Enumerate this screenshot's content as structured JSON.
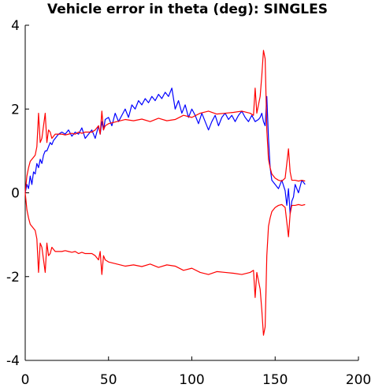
{
  "chart_data": {
    "type": "line",
    "title": "Vehicle error in theta (deg): SINGLES",
    "xlabel": "",
    "ylabel": "",
    "xlim": [
      0,
      200
    ],
    "ylim": [
      -4,
      4
    ],
    "xticks": [
      0,
      50,
      100,
      150,
      200
    ],
    "yticks": [
      -4,
      -2,
      0,
      2,
      4
    ],
    "xtick_labels": [
      "0",
      "50",
      "100",
      "150",
      "200"
    ],
    "ytick_labels": [
      "-4",
      "-2",
      "0",
      "2",
      "4"
    ],
    "grid": false,
    "legend": "none",
    "series": [
      {
        "role": "error",
        "color": "#0000ff",
        "x": [
          0,
          1,
          2,
          3,
          4,
          5,
          6,
          7,
          8,
          9,
          10,
          11,
          12,
          13,
          14,
          15,
          16,
          17,
          18,
          19,
          20,
          22,
          24,
          26,
          28,
          30,
          32,
          34,
          36,
          38,
          40,
          42,
          44,
          45,
          46,
          47,
          48,
          50,
          52,
          54,
          56,
          58,
          60,
          62,
          64,
          66,
          68,
          70,
          72,
          74,
          76,
          78,
          80,
          82,
          84,
          86,
          88,
          90,
          92,
          94,
          96,
          98,
          100,
          102,
          104,
          106,
          108,
          110,
          112,
          114,
          116,
          118,
          120,
          122,
          124,
          126,
          128,
          130,
          132,
          134,
          136,
          138,
          140,
          141,
          142,
          143,
          144,
          145,
          146,
          147,
          148,
          150,
          152,
          154,
          156,
          157,
          158,
          159,
          160,
          161,
          162,
          164,
          166,
          168
        ],
        "y": [
          0,
          0.2,
          0.1,
          0.4,
          0.2,
          0.5,
          0.45,
          0.7,
          0.6,
          0.8,
          0.7,
          0.9,
          1.0,
          1.0,
          1.1,
          1.2,
          1.15,
          1.25,
          1.3,
          1.35,
          1.4,
          1.45,
          1.4,
          1.5,
          1.35,
          1.45,
          1.4,
          1.55,
          1.3,
          1.4,
          1.5,
          1.3,
          1.6,
          1.4,
          1.7,
          1.5,
          1.75,
          1.8,
          1.6,
          1.9,
          1.7,
          1.85,
          2.0,
          1.8,
          2.1,
          2.0,
          2.2,
          2.1,
          2.25,
          2.15,
          2.3,
          2.2,
          2.35,
          2.25,
          2.4,
          2.3,
          2.5,
          2.0,
          2.2,
          1.9,
          2.1,
          1.8,
          2.0,
          1.85,
          1.65,
          1.9,
          1.7,
          1.5,
          1.7,
          1.85,
          1.6,
          1.8,
          1.9,
          1.75,
          1.85,
          1.7,
          1.85,
          1.95,
          1.8,
          1.7,
          1.85,
          1.7,
          1.75,
          1.8,
          1.9,
          1.7,
          1.6,
          2.3,
          1.3,
          0.6,
          0.3,
          0.2,
          0.1,
          0.3,
          0.05,
          -0.3,
          0.1,
          -0.5,
          -0.2,
          -0.1,
          0.2,
          0.0,
          0.3,
          0.2
        ]
      },
      {
        "role": "upper-bound",
        "color": "#ff0000",
        "x": [
          0,
          1,
          2,
          3,
          4,
          5,
          6,
          7,
          8,
          9,
          10,
          11,
          12,
          13,
          14,
          15,
          16,
          17,
          18,
          20,
          22,
          24,
          26,
          28,
          30,
          32,
          34,
          36,
          40,
          42,
          44,
          45,
          46,
          47,
          48,
          50,
          55,
          60,
          65,
          70,
          75,
          80,
          85,
          90,
          95,
          100,
          105,
          110,
          115,
          120,
          125,
          130,
          135,
          137,
          138,
          139,
          140,
          141,
          142,
          143,
          144,
          145,
          146,
          147,
          148,
          150,
          152,
          154,
          156,
          157,
          158,
          159,
          160,
          162,
          164,
          166,
          168
        ],
        "y": [
          0,
          0.4,
          0.6,
          0.75,
          0.8,
          0.85,
          0.9,
          1.1,
          1.9,
          1.2,
          1.3,
          1.6,
          1.9,
          1.2,
          1.5,
          1.45,
          1.3,
          1.35,
          1.4,
          1.4,
          1.4,
          1.38,
          1.4,
          1.42,
          1.4,
          1.45,
          1.42,
          1.45,
          1.45,
          1.5,
          1.6,
          1.4,
          1.95,
          1.5,
          1.6,
          1.65,
          1.7,
          1.75,
          1.72,
          1.76,
          1.7,
          1.78,
          1.72,
          1.75,
          1.85,
          1.8,
          1.9,
          1.95,
          1.88,
          1.9,
          1.92,
          1.95,
          1.9,
          1.85,
          2.5,
          1.9,
          2.1,
          2.3,
          2.8,
          3.4,
          3.2,
          1.5,
          0.8,
          0.6,
          0.45,
          0.35,
          0.3,
          0.28,
          0.35,
          0.7,
          1.05,
          0.5,
          0.3,
          0.3,
          0.28,
          0.3,
          0.28
        ]
      },
      {
        "role": "lower-bound",
        "color": "#ff0000",
        "x": [
          0,
          1,
          2,
          3,
          4,
          5,
          6,
          7,
          8,
          9,
          10,
          11,
          12,
          13,
          14,
          15,
          16,
          17,
          18,
          20,
          22,
          24,
          26,
          28,
          30,
          32,
          34,
          36,
          40,
          42,
          44,
          45,
          46,
          47,
          48,
          50,
          55,
          60,
          65,
          70,
          75,
          80,
          85,
          90,
          95,
          100,
          105,
          110,
          115,
          120,
          125,
          130,
          135,
          137,
          138,
          139,
          140,
          141,
          142,
          143,
          144,
          145,
          146,
          147,
          148,
          150,
          152,
          154,
          156,
          157,
          158,
          159,
          160,
          162,
          164,
          166,
          168
        ],
        "y": [
          0,
          -0.4,
          -0.6,
          -0.75,
          -0.8,
          -0.85,
          -0.9,
          -1.1,
          -1.9,
          -1.2,
          -1.3,
          -1.6,
          -1.9,
          -1.2,
          -1.5,
          -1.45,
          -1.3,
          -1.35,
          -1.4,
          -1.4,
          -1.4,
          -1.38,
          -1.4,
          -1.42,
          -1.4,
          -1.45,
          -1.42,
          -1.45,
          -1.45,
          -1.5,
          -1.6,
          -1.4,
          -1.95,
          -1.5,
          -1.6,
          -1.65,
          -1.7,
          -1.75,
          -1.72,
          -1.76,
          -1.7,
          -1.78,
          -1.72,
          -1.75,
          -1.85,
          -1.8,
          -1.9,
          -1.95,
          -1.88,
          -1.9,
          -1.92,
          -1.95,
          -1.9,
          -1.85,
          -2.5,
          -1.9,
          -2.1,
          -2.3,
          -2.8,
          -3.4,
          -3.2,
          -1.5,
          -0.8,
          -0.6,
          -0.45,
          -0.35,
          -0.3,
          -0.28,
          -0.35,
          -0.7,
          -1.05,
          -0.5,
          -0.3,
          -0.3,
          -0.28,
          -0.3,
          -0.28
        ]
      }
    ]
  }
}
